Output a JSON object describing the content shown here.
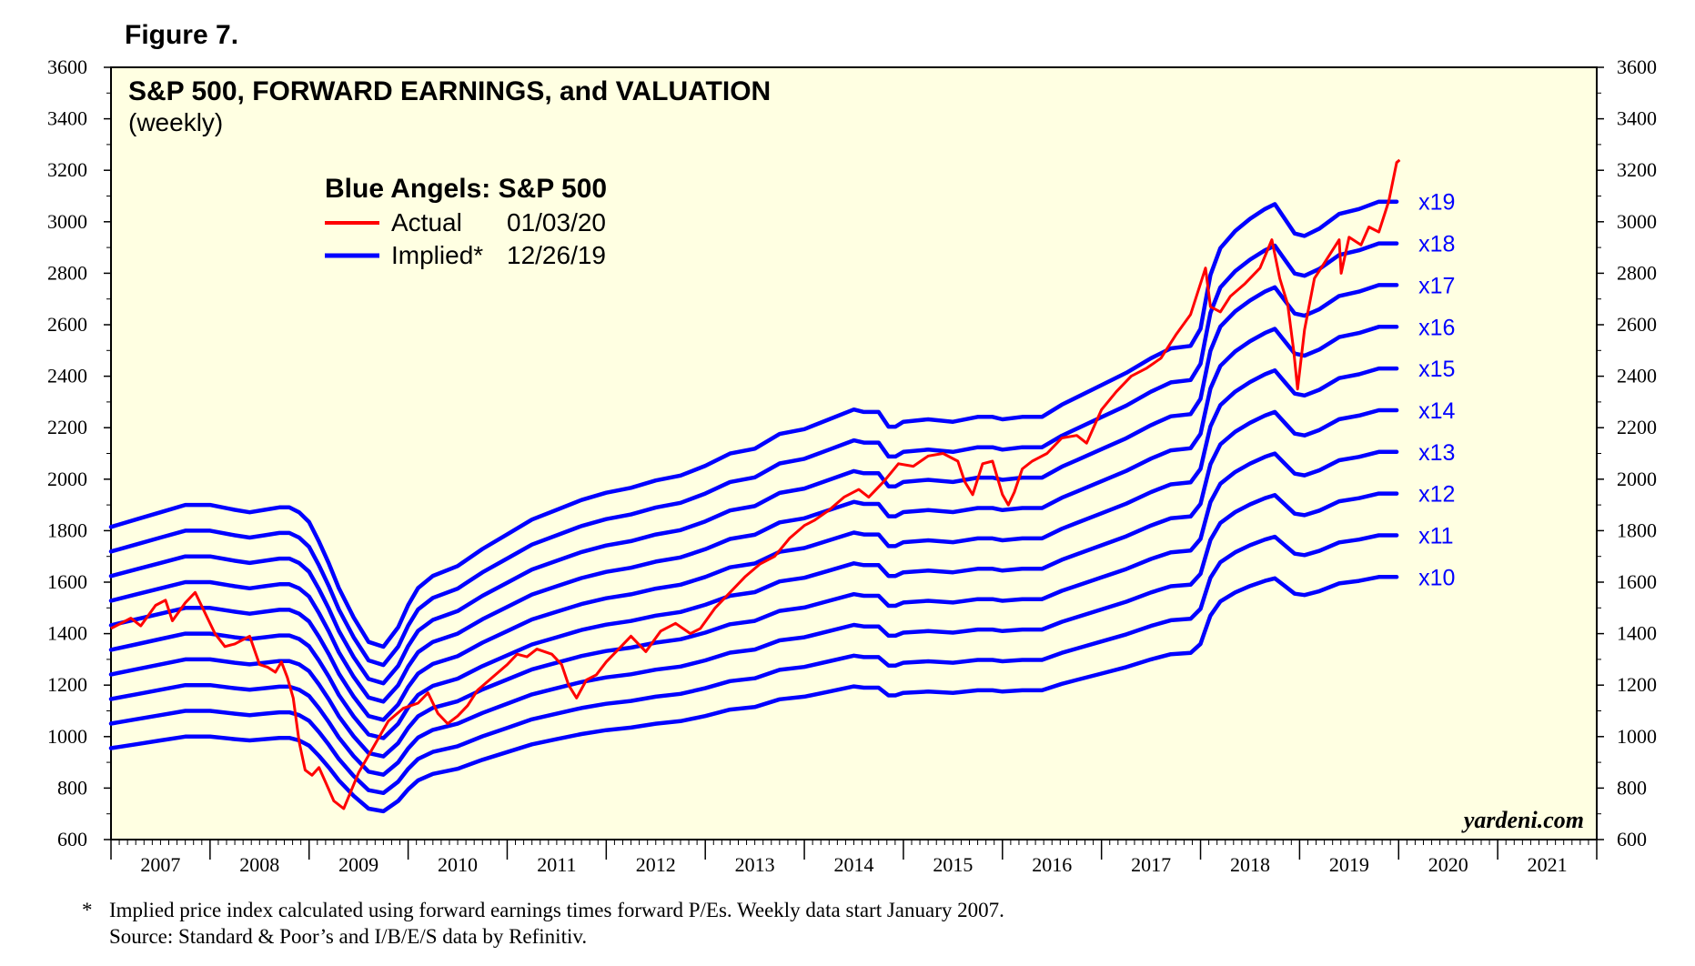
{
  "figure_label": "Figure 7.",
  "footnote_marker": "*",
  "footnote": "Implied price index calculated using forward earnings times forward P/Es. Weekly data start January 2007.",
  "source": "Source: Standard & Poor’s and I/B/E/S data by Refinitiv.",
  "colors": {
    "background": "#ffffe2",
    "actual": "#ff0000",
    "implied": "#0000ff",
    "multiple_label": "#0000ff"
  },
  "chart_data": {
    "type": "line",
    "title": "S&P 500, FORWARD EARNINGS, and VALUATION",
    "subtitle": "(weekly)",
    "legend": {
      "title": "Blue Angels: S&P 500",
      "placement": "top-left",
      "entries": [
        {
          "label": "Actual",
          "date": "01/03/20",
          "color": "#ff0000"
        },
        {
          "label": "Implied*",
          "date": "12/26/19",
          "color": "#0000ff"
        }
      ]
    },
    "watermark": "yardeni.com",
    "x_axis": {
      "categories": [
        "2007",
        "2008",
        "2009",
        "2010",
        "2011",
        "2012",
        "2013",
        "2014",
        "2015",
        "2016",
        "2017",
        "2018",
        "2019",
        "2020",
        "2021"
      ],
      "range": [
        2007,
        2022
      ]
    },
    "y_axis": {
      "ticks": [
        600,
        800,
        1000,
        1200,
        1400,
        1600,
        1800,
        2000,
        2200,
        2400,
        2600,
        2800,
        3000,
        3200,
        3400,
        3600
      ],
      "ylim": [
        600,
        3600
      ],
      "both_sides": true
    },
    "actual": {
      "name": "Actual",
      "x": [
        2007.0,
        2007.1,
        2007.2,
        2007.3,
        2007.45,
        2007.55,
        2007.62,
        2007.75,
        2007.85,
        2007.95,
        2008.05,
        2008.15,
        2008.25,
        2008.4,
        2008.5,
        2008.58,
        2008.66,
        2008.72,
        2008.78,
        2008.84,
        2008.9,
        2008.96,
        2009.03,
        2009.1,
        2009.17,
        2009.25,
        2009.35,
        2009.5,
        2009.65,
        2009.8,
        2009.95,
        2010.1,
        2010.2,
        2010.3,
        2010.4,
        2010.5,
        2010.6,
        2010.7,
        2010.85,
        2011.0,
        2011.1,
        2011.2,
        2011.3,
        2011.45,
        2011.55,
        2011.62,
        2011.7,
        2011.8,
        2011.9,
        2012.0,
        2012.1,
        2012.25,
        2012.4,
        2012.55,
        2012.7,
        2012.85,
        2012.95,
        2013.1,
        2013.25,
        2013.4,
        2013.55,
        2013.7,
        2013.85,
        2014.0,
        2014.1,
        2014.25,
        2014.4,
        2014.55,
        2014.65,
        2014.8,
        2014.95,
        2015.1,
        2015.25,
        2015.4,
        2015.55,
        2015.62,
        2015.7,
        2015.8,
        2015.9,
        2016.0,
        2016.06,
        2016.12,
        2016.2,
        2016.3,
        2016.45,
        2016.6,
        2016.75,
        2016.85,
        2017.0,
        2017.15,
        2017.3,
        2017.45,
        2017.6,
        2017.75,
        2017.9,
        2018.05,
        2018.1,
        2018.2,
        2018.3,
        2018.45,
        2018.6,
        2018.72,
        2018.8,
        2018.88,
        2018.94,
        2018.98,
        2019.05,
        2019.15,
        2019.3,
        2019.4,
        2019.42,
        2019.5,
        2019.62,
        2019.7,
        2019.8,
        2019.9,
        2019.98,
        2020.01
      ],
      "y": [
        1420,
        1440,
        1460,
        1430,
        1510,
        1530,
        1450,
        1520,
        1560,
        1480,
        1400,
        1350,
        1360,
        1390,
        1280,
        1270,
        1250,
        1290,
        1230,
        1150,
        980,
        870,
        850,
        880,
        820,
        750,
        720,
        860,
        960,
        1060,
        1110,
        1130,
        1170,
        1090,
        1050,
        1080,
        1120,
        1180,
        1230,
        1280,
        1320,
        1310,
        1340,
        1320,
        1280,
        1200,
        1150,
        1220,
        1240,
        1290,
        1330,
        1390,
        1330,
        1410,
        1440,
        1400,
        1420,
        1500,
        1560,
        1620,
        1670,
        1700,
        1770,
        1820,
        1840,
        1880,
        1930,
        1960,
        1930,
        1990,
        2060,
        2050,
        2090,
        2100,
        2070,
        1990,
        1940,
        2060,
        2070,
        1940,
        1900,
        1950,
        2040,
        2070,
        2100,
        2160,
        2170,
        2140,
        2270,
        2340,
        2400,
        2430,
        2470,
        2560,
        2640,
        2820,
        2670,
        2650,
        2710,
        2760,
        2820,
        2930,
        2780,
        2680,
        2500,
        2350,
        2580,
        2780,
        2870,
        2930,
        2800,
        2940,
        2910,
        2980,
        2960,
        3080,
        3230,
        3240
      ]
    },
    "implied_base": {
      "name": "Implied",
      "x": [
        2007.0,
        2007.25,
        2007.5,
        2007.75,
        2008.0,
        2008.25,
        2008.4,
        2008.55,
        2008.7,
        2008.8,
        2008.9,
        2009.0,
        2009.1,
        2009.2,
        2009.3,
        2009.45,
        2009.6,
        2009.75,
        2009.9,
        2010.0,
        2010.1,
        2010.25,
        2010.5,
        2010.75,
        2011.0,
        2011.25,
        2011.5,
        2011.75,
        2012.0,
        2012.25,
        2012.5,
        2012.75,
        2013.0,
        2013.25,
        2013.5,
        2013.75,
        2014.0,
        2014.25,
        2014.5,
        2014.6,
        2014.75,
        2014.85,
        2014.92,
        2015.0,
        2015.25,
        2015.5,
        2015.75,
        2015.9,
        2016.0,
        2016.2,
        2016.4,
        2016.6,
        2016.75,
        2017.0,
        2017.25,
        2017.5,
        2017.7,
        2017.9,
        2018.0,
        2018.04,
        2018.1,
        2018.2,
        2018.35,
        2018.5,
        2018.65,
        2018.75,
        2018.85,
        2018.95,
        2019.05,
        2019.2,
        2019.4,
        2019.6,
        2019.8,
        2019.98
      ],
      "multiple_10_values": [
        955,
        970,
        985,
        1000,
        1000,
        990,
        985,
        990,
        995,
        995,
        985,
        965,
        925,
        880,
        830,
        770,
        720,
        710,
        750,
        795,
        830,
        855,
        875,
        910,
        940,
        970,
        990,
        1010,
        1025,
        1035,
        1050,
        1060,
        1080,
        1105,
        1115,
        1145,
        1155,
        1175,
        1195,
        1190,
        1190,
        1160,
        1160,
        1170,
        1175,
        1170,
        1180,
        1180,
        1175,
        1180,
        1180,
        1205,
        1220,
        1245,
        1270,
        1300,
        1320,
        1325,
        1360,
        1405,
        1470,
        1525,
        1560,
        1585,
        1605,
        1615,
        1585,
        1555,
        1550,
        1565,
        1595,
        1605,
        1620,
        1620
      ],
      "multiples": [
        10,
        11,
        12,
        13,
        14,
        15,
        16,
        17,
        18,
        19
      ],
      "multiple_labels": [
        "x10",
        "x11",
        "x12",
        "x13",
        "x14",
        "x15",
        "x16",
        "x17",
        "x18",
        "x19"
      ]
    }
  }
}
